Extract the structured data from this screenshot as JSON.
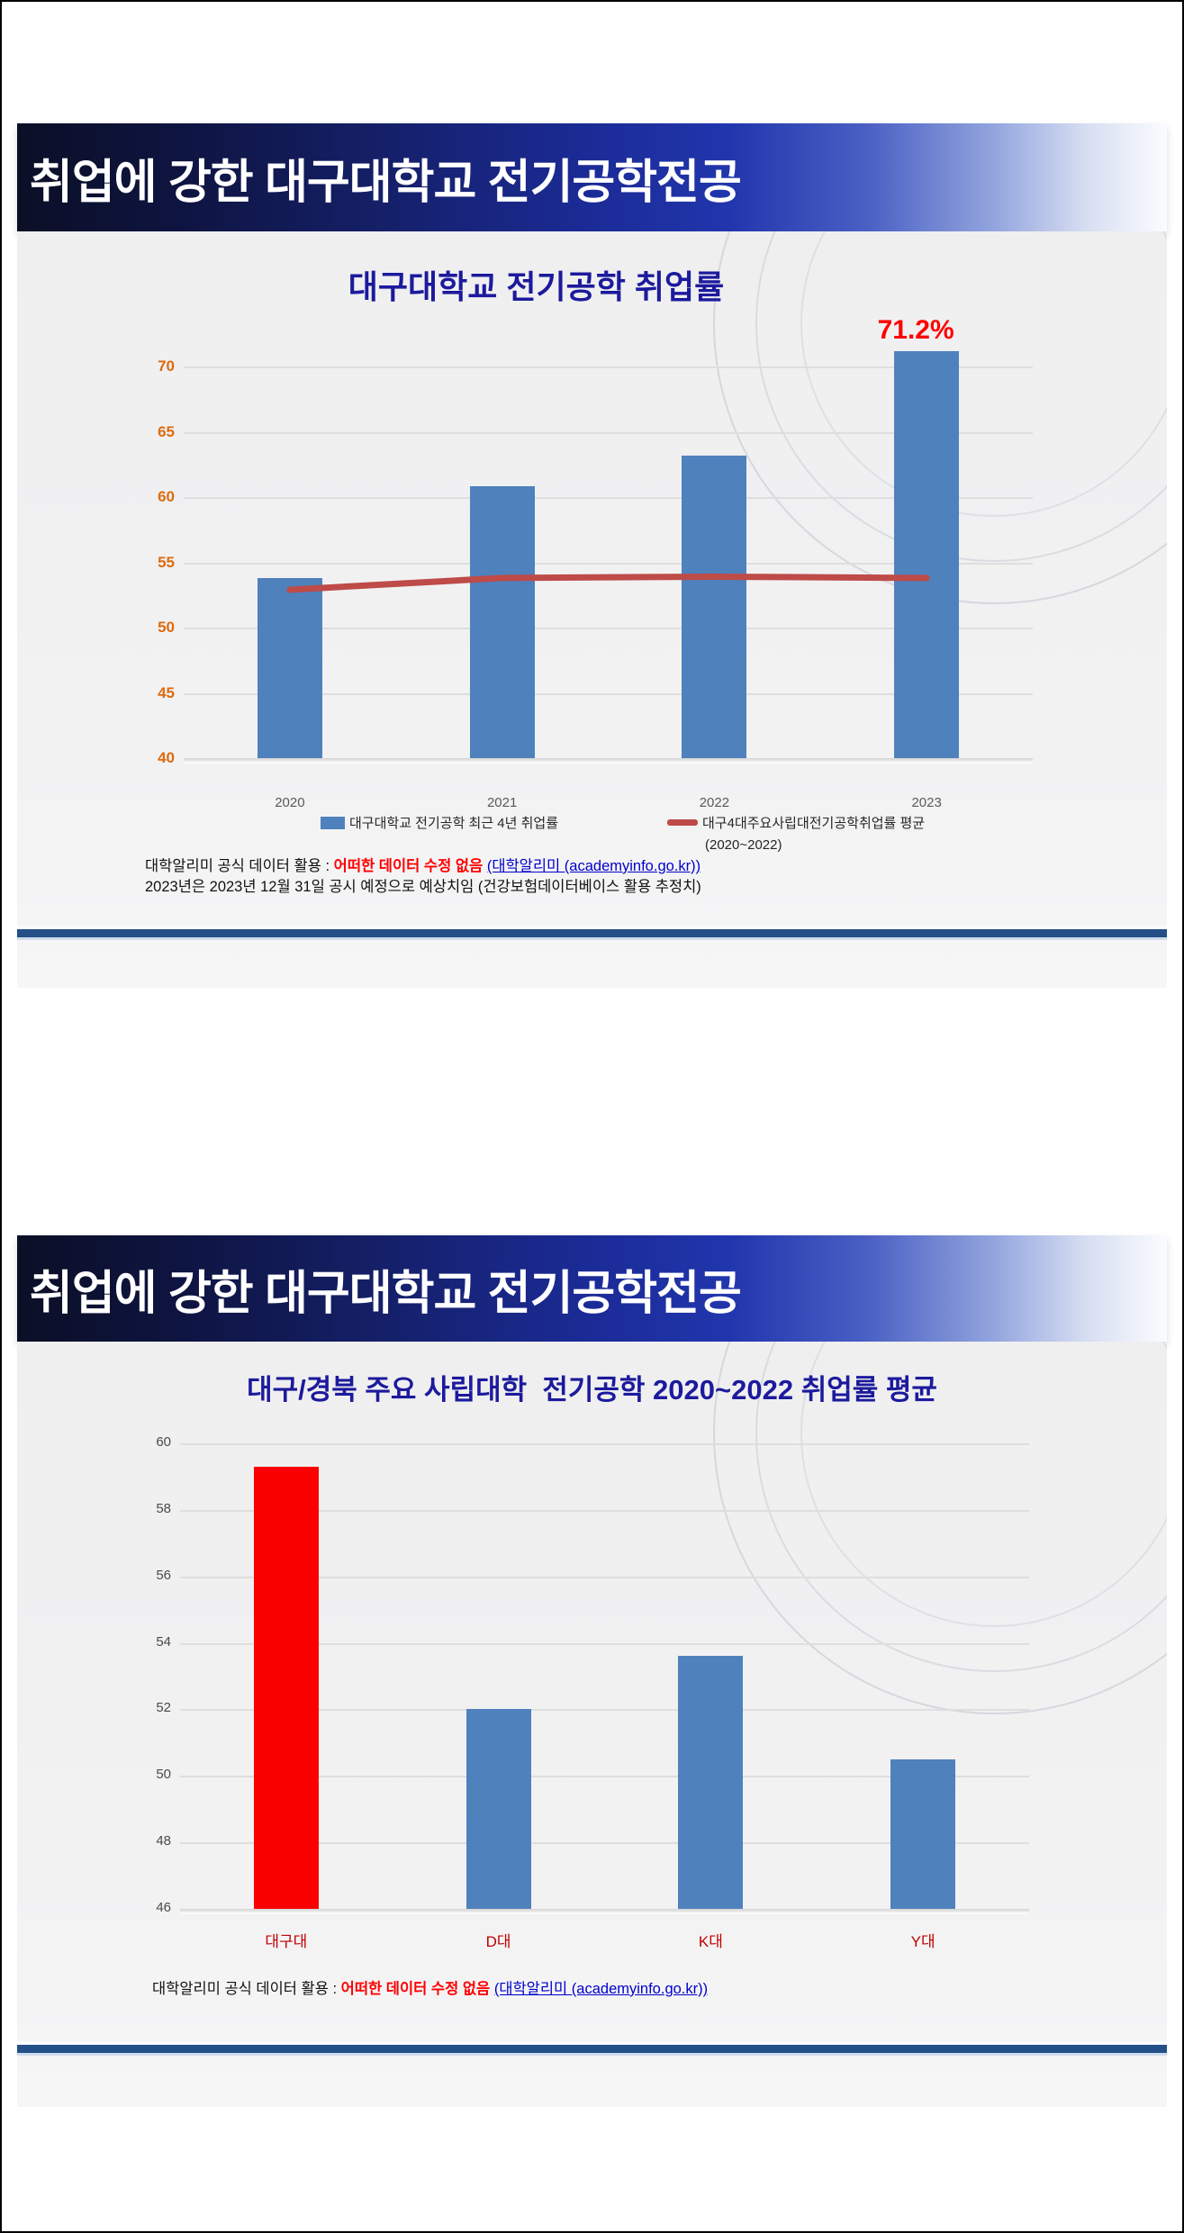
{
  "slide1": {
    "banner_title": "취업에 강한 대구대학교 전기공학전공",
    "chart_title": "대구대학교 전기공학 취업률",
    "legend_bar_label": "대구대학교 전기공학 최근 4년 취업률",
    "legend_line_label": "대구4대주요사립대전기공학취업률 평균",
    "legend_line_sublabel": "(2020~2022)",
    "footer_prefix": "대학알리미 공식 데이터 활용 : ",
    "footer_highlight": "어떠한 데이터 수정 없음",
    "footer_link": "(대학알리미 (academyinfo.go.kr))",
    "footer_line2": "2023년은 2023년 12월 31일 공시 예정으로 예상치임 (건강보험데이터베이스 활용 추정치)"
  },
  "slide2": {
    "banner_title": "취업에 강한 대구대학교 전기공학전공",
    "chart_title": "대구/경북 주요 사립대학  전기공학 2020~2022 취업률 평균",
    "footer_prefix": "대학알리미 공식 데이터 활용 : ",
    "footer_highlight": "어떠한 데이터 수정 없음",
    "footer_link": "(대학알리미 (academyinfo.go.kr))"
  },
  "colors": {
    "bar_blue": "#4F81BD",
    "line_red": "#BE4B48",
    "bar_red": "#FB0000",
    "axis_orange": "#DD6B0D",
    "axis_gray": "#595959",
    "axis_gray2": "#4A4A4A",
    "xlabel_red": "#C00000",
    "title_navy": "#1C1A9C",
    "annotation_red": "#FE0000",
    "divider_blue": "#235087"
  },
  "chart_data": [
    {
      "type": "bar",
      "title": "대구대학교 전기공학 취업률",
      "categories": [
        "2020",
        "2021",
        "2022",
        "2023"
      ],
      "series": [
        {
          "name": "대구대학교 전기공학 최근 4년 취업률",
          "type": "bar",
          "color": "#4F81BD",
          "values": [
            53.8,
            60.8,
            63.2,
            71.2
          ]
        },
        {
          "name": "대구4대주요사립대전기공학취업률 평균 (2020~2022)",
          "type": "line",
          "color": "#BE4B48",
          "values": [
            52.9,
            53.8,
            53.9,
            53.8
          ]
        }
      ],
      "xlabel": "",
      "ylabel": "",
      "ylim": [
        40,
        71.6
      ],
      "yticks": [
        40,
        45,
        50,
        55,
        60,
        65,
        70
      ],
      "grid": true,
      "legend_position": "bottom",
      "annotations": [
        {
          "text": "71.2%",
          "category": "2023",
          "color": "#FE0000"
        }
      ]
    },
    {
      "type": "bar",
      "title": "대구/경북 주요 사립대학  전기공학 2020~2022 취업률 평균",
      "categories": [
        "대구대",
        "D대",
        "K대",
        "Y대"
      ],
      "series": [
        {
          "name": "전기공학 2020~2022 취업률 평균",
          "type": "bar",
          "values": [
            59.3,
            52.0,
            53.6,
            50.5
          ],
          "colors": [
            "#FB0000",
            "#4F81BD",
            "#4F81BD",
            "#4F81BD"
          ]
        }
      ],
      "xlabel": "",
      "ylabel": "",
      "ylim": [
        46,
        60.6
      ],
      "yticks": [
        46,
        48,
        50,
        52,
        54,
        56,
        58,
        60
      ],
      "grid": true,
      "legend_position": "none",
      "annotations": []
    }
  ]
}
